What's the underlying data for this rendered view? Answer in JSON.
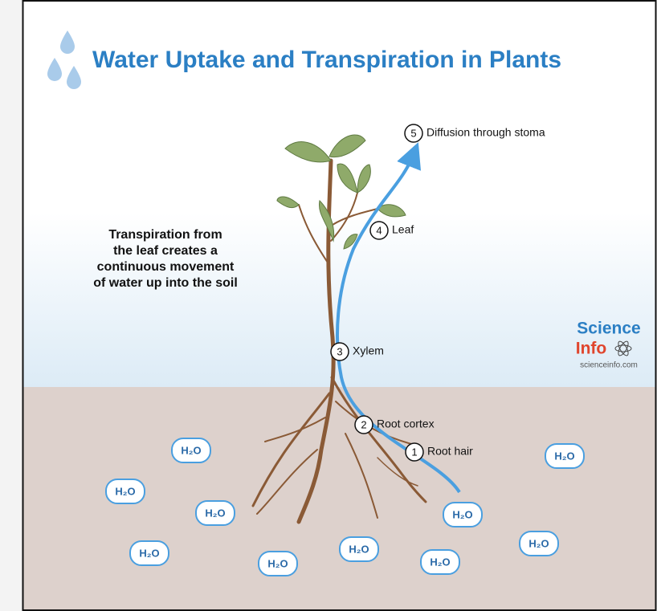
{
  "title": "Water Uptake and Transpiration in Plants",
  "description": [
    "Transpiration from",
    "the leaf creates a",
    "continuous movement",
    "of water up into the soil"
  ],
  "steps": [
    {
      "number": "1",
      "label": "Root hair"
    },
    {
      "number": "2",
      "label": "Root cortex"
    },
    {
      "number": "3",
      "label": "Xylem"
    },
    {
      "number": "4",
      "label": "Leaf"
    },
    {
      "number": "5",
      "label": "Diffusion through stoma"
    }
  ],
  "molecules": [
    "H₂O",
    "H₂O",
    "H₂O",
    "H₂O",
    "H₂O",
    "H₂O",
    "H₂O",
    "H₂O",
    "H₂O",
    "H₂O"
  ],
  "logo": {
    "line1": "Science",
    "line2": "Info",
    "url": "scienceinfo.com"
  }
}
